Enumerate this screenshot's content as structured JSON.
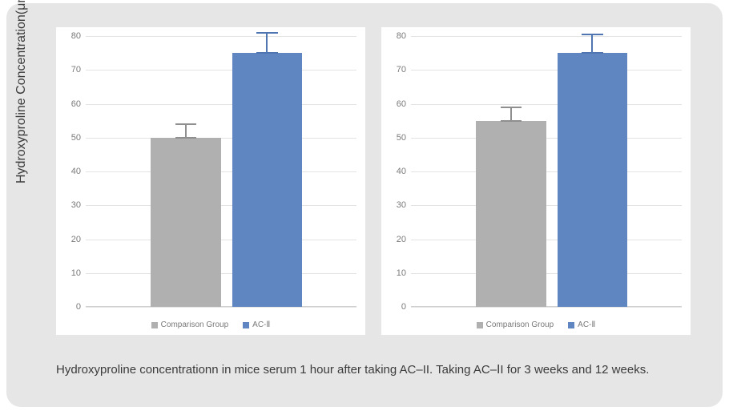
{
  "background_color": "#e6e6e6",
  "chart_bg": "#ffffff",
  "grid_color": "#e3e3e3",
  "axis_color": "#d0d0d0",
  "text_color": "#3b3b3b",
  "tick_text_color": "#7a7a7a",
  "yaxis_label": "Hydroxyproline Concentration(μm/ml)",
  "caption": "Hydroxyproline concentrationn in mice serum 1 hour after taking AC–II.    Taking AC–ⅠI for 3 weeks and 12 weeks.",
  "legend": {
    "items": [
      {
        "label": "Comparison Group",
        "color": "#b0b0b0"
      },
      {
        "label": "AC-Ⅱ",
        "color": "#5f86c0"
      }
    ]
  },
  "y_axis": {
    "min": 0,
    "max": 80,
    "step": 10
  },
  "series_colors": {
    "comparison": "#b0b0b0",
    "ac2": "#5f86c0"
  },
  "error_bar": {
    "color_comparison": "#8f8f8f",
    "color_ac2": "#4f76b0",
    "cap_width_ratio": 0.3
  },
  "bar_layout": {
    "bar_width_ratio": 0.26,
    "positions": [
      0.24,
      0.54
    ]
  },
  "charts": [
    {
      "name": "chart-3-weeks",
      "bars": [
        {
          "key": "comparison",
          "value": 50,
          "error": 4
        },
        {
          "key": "ac2",
          "value": 75,
          "error": 6
        }
      ]
    },
    {
      "name": "chart-12-weeks",
      "bars": [
        {
          "key": "comparison",
          "value": 55,
          "error": 4
        },
        {
          "key": "ac2",
          "value": 75,
          "error": 5.5
        }
      ]
    }
  ]
}
